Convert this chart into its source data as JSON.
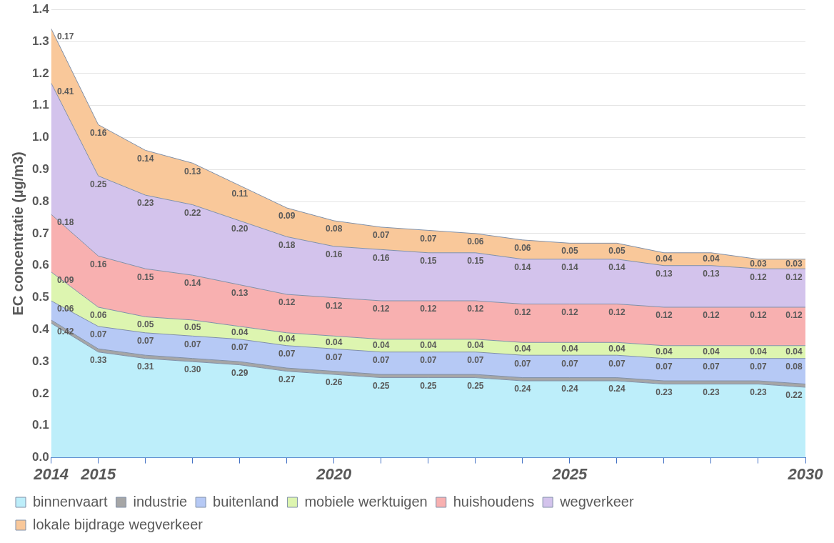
{
  "chart_data": {
    "type": "area",
    "stacked": true,
    "ylabel": "EC concentratie (µg/m3)",
    "x": [
      2014,
      2015,
      2016,
      2017,
      2018,
      2019,
      2020,
      2021,
      2022,
      2023,
      2024,
      2025,
      2026,
      2027,
      2028,
      2029,
      2030
    ],
    "xlim": [
      2014,
      2030
    ],
    "xticks": [
      2014,
      2015,
      {
        "value": 2016,
        "label": null
      },
      {
        "value": 2017,
        "label": null
      },
      {
        "value": 2018,
        "label": null
      },
      {
        "value": 2019,
        "label": null
      },
      2020,
      {
        "value": 2021,
        "label": null
      },
      {
        "value": 2022,
        "label": null
      },
      {
        "value": 2023,
        "label": null
      },
      {
        "value": 2024,
        "label": null
      },
      2025,
      {
        "value": 2026,
        "label": null
      },
      {
        "value": 2027,
        "label": null
      },
      {
        "value": 2028,
        "label": null
      },
      {
        "value": 2029,
        "label": null
      },
      2030
    ],
    "ylim": [
      0,
      1.4
    ],
    "yticks": [
      {
        "value": 0,
        "label": "0.0"
      },
      0.1,
      0.2,
      0.3,
      0.4,
      0.5,
      0.6,
      0.7,
      0.8,
      0.9,
      {
        "value": 1,
        "label": "1.0"
      },
      1.1,
      1.2,
      1.3,
      1.4
    ],
    "grid": "y",
    "legend": "bottom",
    "series": [
      {
        "name": "binnenvaart",
        "color": "#bdeefa",
        "values": [
          0.42,
          0.33,
          0.31,
          0.3,
          0.29,
          0.27,
          0.26,
          0.25,
          0.25,
          0.25,
          0.24,
          0.24,
          0.24,
          0.23,
          0.23,
          0.23,
          0.22
        ],
        "value_labels": [
          "0.42",
          "0.33",
          "0.31",
          "0.30",
          "0.29",
          "0.27",
          "0.26",
          "0.25",
          "0.25",
          "0.25",
          "0.24",
          "0.24",
          "0.24",
          "0.23",
          "0.23",
          "0.23",
          "0.22"
        ]
      },
      {
        "name": "industrie",
        "color": "#a6a6a6",
        "values": [
          0.01,
          0.01,
          0.01,
          0.01,
          0.01,
          0.01,
          0.01,
          0.01,
          0.01,
          0.01,
          0.01,
          0.01,
          0.01,
          0.01,
          0.01,
          0.01,
          0.01
        ]
      },
      {
        "name": "buitenland",
        "color": "#b6c9f5",
        "values": [
          0.06,
          0.07,
          0.07,
          0.07,
          0.07,
          0.07,
          0.07,
          0.07,
          0.07,
          0.07,
          0.07,
          0.07,
          0.07,
          0.07,
          0.07,
          0.07,
          0.08
        ],
        "value_labels": [
          "0.06",
          "0.07",
          "0.07",
          "0.07",
          "0.07",
          "0.07",
          "0.07",
          "0.07",
          "0.07",
          "0.07",
          "0.07",
          "0.07",
          "0.07",
          "0.07",
          "0.07",
          "0.07",
          "0.08"
        ]
      },
      {
        "name": "mobiele werktuigen",
        "color": "#ddf5b0",
        "values": [
          0.09,
          0.06,
          0.05,
          0.05,
          0.04,
          0.04,
          0.04,
          0.04,
          0.04,
          0.04,
          0.04,
          0.04,
          0.04,
          0.04,
          0.04,
          0.04,
          0.04
        ],
        "value_labels": [
          "0.09",
          "0.06",
          "0.05",
          "0.05",
          "0.04",
          "0.04",
          "0.04",
          "0.04",
          "0.04",
          "0.04",
          "0.04",
          "0.04",
          "0.04",
          "0.04",
          "0.04",
          "0.04",
          "0.04"
        ]
      },
      {
        "name": "huishoudens",
        "color": "#f8b0b0",
        "values": [
          0.18,
          0.16,
          0.15,
          0.14,
          0.13,
          0.12,
          0.12,
          0.12,
          0.12,
          0.12,
          0.12,
          0.12,
          0.12,
          0.12,
          0.12,
          0.12,
          0.12
        ],
        "value_labels": [
          "0.18",
          "0.16",
          "0.15",
          "0.14",
          "0.13",
          "0.12",
          "0.12",
          "0.12",
          "0.12",
          "0.12",
          "0.12",
          "0.12",
          "0.12",
          "0.12",
          "0.12",
          "0.12",
          "0.12"
        ]
      },
      {
        "name": "wegverkeer",
        "color": "#d3c3ec",
        "values": [
          0.41,
          0.25,
          0.23,
          0.22,
          0.2,
          0.18,
          0.16,
          0.16,
          0.15,
          0.15,
          0.14,
          0.14,
          0.14,
          0.13,
          0.13,
          0.12,
          0.12
        ],
        "value_labels": [
          "0.41",
          "0.25",
          "0.23",
          "0.22",
          "0.20",
          "0.18",
          "0.16",
          "0.16",
          "0.15",
          "0.15",
          "0.14",
          "0.14",
          "0.14",
          "0.13",
          "0.13",
          "0.12",
          "0.12"
        ]
      },
      {
        "name": "lokale bijdrage wegverkeer",
        "color": "#f9c89a",
        "values": [
          0.17,
          0.16,
          0.14,
          0.13,
          0.11,
          0.09,
          0.08,
          0.07,
          0.07,
          0.06,
          0.06,
          0.05,
          0.05,
          0.04,
          0.04,
          0.03,
          0.03
        ],
        "value_labels": [
          "0.17",
          "0.16",
          "0.14",
          "0.13",
          "0.11",
          "0.09",
          "0.08",
          "0.07",
          "0.07",
          "0.06",
          "0.06",
          "0.05",
          "0.05",
          "0.04",
          "0.04",
          "0.03",
          "0.03"
        ]
      }
    ]
  }
}
